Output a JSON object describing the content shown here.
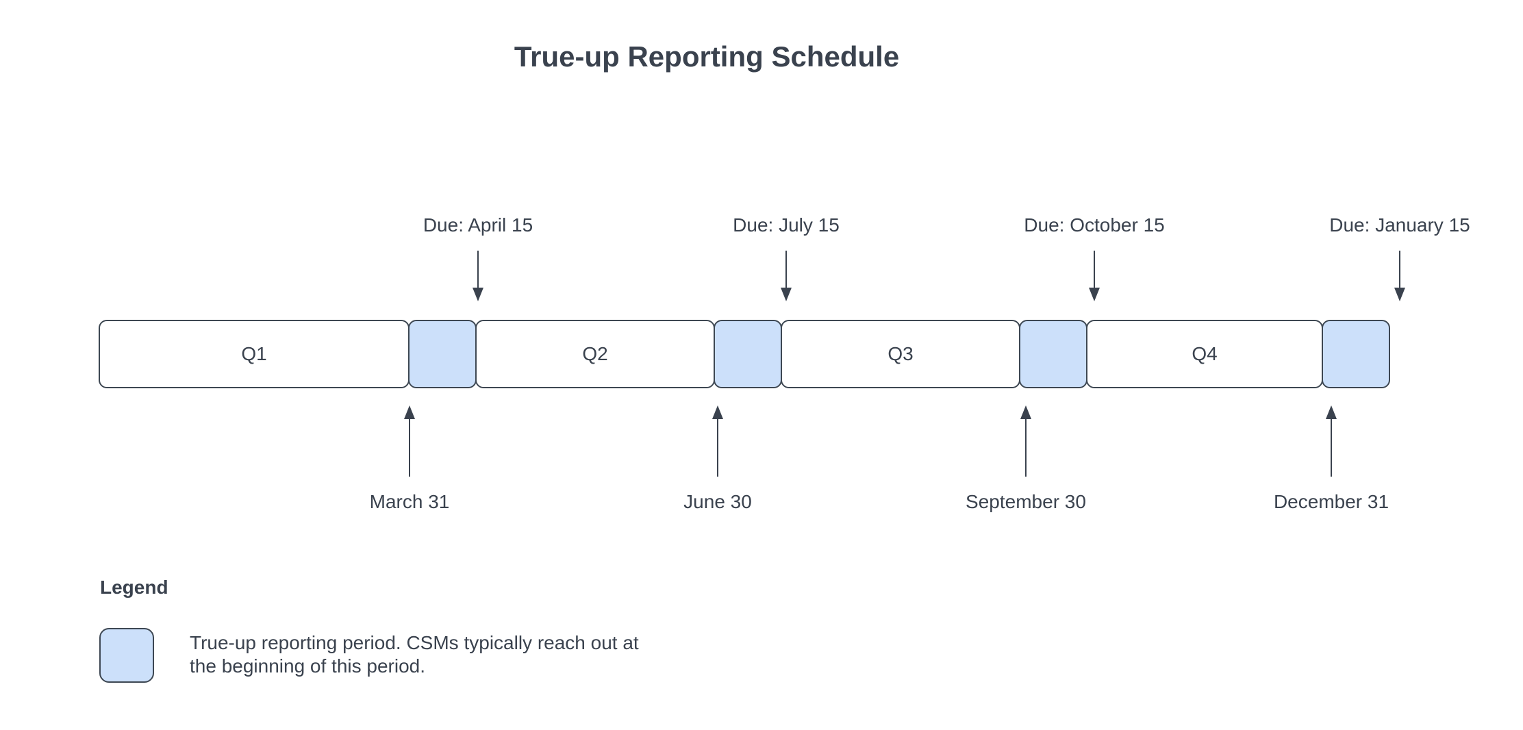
{
  "title": "True-up Reporting Schedule",
  "colors": {
    "highlight_fill": "#cce0fa",
    "outline": "#3d4752",
    "text": "#3a424e",
    "background": "#ffffff"
  },
  "timeline": {
    "quarters": [
      {
        "label": "Q1"
      },
      {
        "label": "Q2"
      },
      {
        "label": "Q3"
      },
      {
        "label": "Q4"
      }
    ],
    "due_annotations": [
      {
        "label": "Due: April 15"
      },
      {
        "label": "Due: July 15"
      },
      {
        "label": "Due: October 15"
      },
      {
        "label": "Due: January 15"
      }
    ],
    "quarter_end_annotations": [
      {
        "label": "March 31"
      },
      {
        "label": "June 30"
      },
      {
        "label": "September 30"
      },
      {
        "label": "December 31"
      }
    ]
  },
  "legend": {
    "heading": "Legend",
    "items": [
      {
        "swatch": "trueup-period-swatch",
        "description": "True-up reporting period. CSMs typically reach out at the beginning of this period."
      }
    ]
  }
}
